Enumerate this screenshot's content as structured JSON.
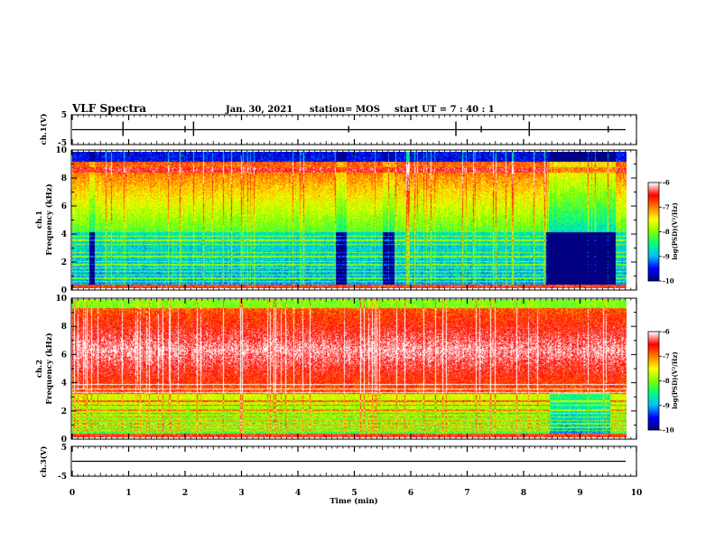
{
  "header": {
    "title": "VLF Spectra",
    "date": "Jan. 30, 2021",
    "station": "station= MOS",
    "start": "start  UT =   7 : 40 : 1"
  },
  "chart_data": {
    "type": "heatmap",
    "x_label": "Time  (min)",
    "x_range": [
      0,
      10
    ],
    "x_ticks": [
      "0",
      "1",
      "2",
      "3",
      "4",
      "5",
      "6",
      "7",
      "8",
      "9",
      "10"
    ],
    "panels": [
      {
        "name": "ch.1(V)",
        "type": "line",
        "ylabel": "ch.1(V)",
        "ylim": [
          -5,
          5
        ],
        "y_ticks": [
          "5",
          "-5"
        ],
        "baseline_value": 0
      },
      {
        "name": "ch.1 spectrogram",
        "type": "heatmap",
        "ylabel_line1": "ch.1",
        "ylabel_line2": "Frequency (kHz)",
        "ylim": [
          0,
          10
        ],
        "y_ticks": [
          "0",
          "2",
          "4",
          "6",
          "8",
          "10"
        ],
        "colorbar": {
          "label": "log(PSD)(V²/Hz)",
          "range": [
            -10,
            -6
          ],
          "ticks": [
            "-6",
            "-7",
            "-8",
            "-9",
            "-10"
          ]
        }
      },
      {
        "name": "ch.2 spectrogram",
        "type": "heatmap",
        "ylabel_line1": "ch.2",
        "ylabel_line2": "Frequency (kHz)",
        "ylim": [
          0,
          10
        ],
        "y_ticks": [
          "0",
          "2",
          "4",
          "6",
          "8",
          "10"
        ],
        "colorbar": {
          "label": "log(PSD)(V²/Hz)",
          "range": [
            -10,
            -6
          ],
          "ticks": [
            "-6",
            "-7",
            "-8",
            "-9",
            "-10"
          ]
        }
      },
      {
        "name": "ch.3(V)",
        "type": "line",
        "ylabel": "ch.3(V)",
        "ylim": [
          -5,
          5
        ],
        "y_ticks": [
          "5",
          "-5"
        ],
        "baseline_value": 0
      }
    ],
    "colormap": [
      "#000080",
      "#0000ff",
      "#00c0ff",
      "#00ff80",
      "#80ff00",
      "#ffff00",
      "#ff8000",
      "#ff0000",
      "#ffffff"
    ]
  }
}
